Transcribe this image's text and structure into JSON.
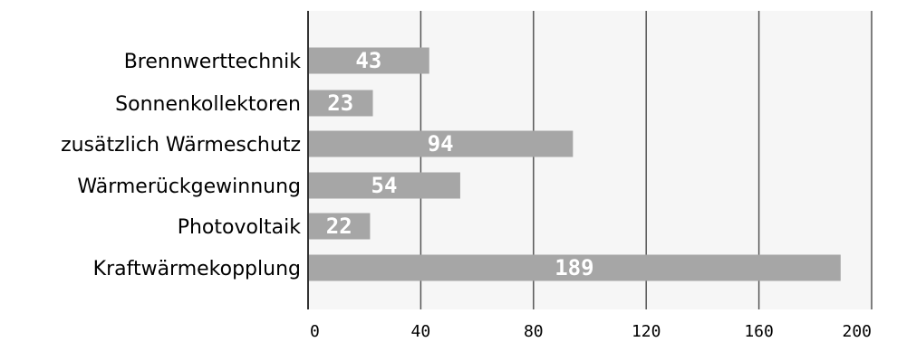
{
  "chart_data": {
    "type": "bar",
    "orientation": "horizontal",
    "categories": [
      "Brennwerttechnik",
      "Sonnenkollektoren",
      "zusätzlich Wärmeschutz",
      "Wärmerückgewinnung",
      "Photovoltaik",
      "Kraftwärmekopplung"
    ],
    "values": [
      43,
      23,
      94,
      54,
      22,
      189
    ],
    "value_labels": [
      "43",
      "23",
      "94",
      "54",
      "22",
      "189"
    ],
    "x_ticks": [
      "0",
      "40",
      "80",
      "120",
      "160",
      "200"
    ],
    "xlim": [
      0,
      200
    ],
    "grid": true,
    "legend": "none",
    "colors": {
      "bar": "#a6a6a6",
      "plot_background": "#f6f6f6",
      "grid": "#555555",
      "axis": "#333333",
      "bar_label": "#ffffff",
      "text": "#000000"
    }
  }
}
